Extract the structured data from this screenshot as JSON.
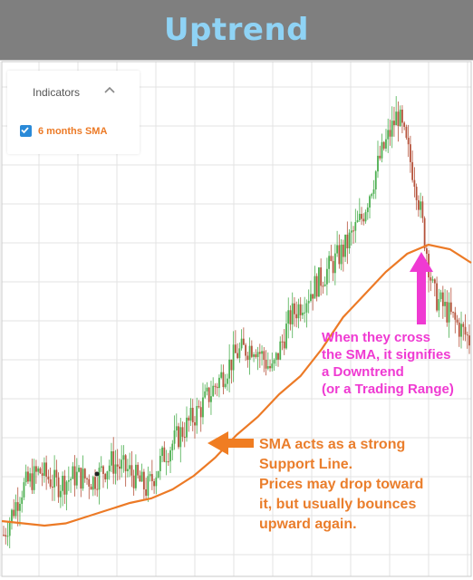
{
  "header": {
    "title": "Uptrend"
  },
  "indicators_panel": {
    "title": "Indicators",
    "collapse_icon": "chevron-up-icon",
    "items": [
      {
        "label": "6 months SMA",
        "checked": true,
        "color": "#ec7a26"
      }
    ]
  },
  "annotations": {
    "downtrend": "When they cross\nthe SMA, it signifies\na Downtrend\n(or a Trading Range)",
    "support": "SMA acts as a strong\nSupport Line.\nPrices may drop toward\nit, but usually bounces\nupward again."
  },
  "colors": {
    "title_bar": "#7f7f7f",
    "title_text": "#8fd3f5",
    "sma_line": "#ec7a26",
    "up_candle": "#4caf50",
    "down_candle": "#b5523b",
    "pink_arrow": "#ef3ad2",
    "orange_arrow": "#f07d22"
  },
  "chart_data": {
    "type": "line",
    "series": [
      {
        "name": "6 months SMA",
        "values": [
          0.05,
          0.045,
          0.04,
          0.045,
          0.06,
          0.075,
          0.09,
          0.1,
          0.12,
          0.15,
          0.19,
          0.24,
          0.28,
          0.33,
          0.37,
          0.43,
          0.5,
          0.55,
          0.6,
          0.64,
          0.66,
          0.65,
          0.62
        ]
      },
      {
        "values": [
          0.02,
          0.12,
          0.16,
          0.13,
          0.15,
          0.14,
          0.18,
          0.16,
          0.12,
          0.2,
          0.25,
          0.3,
          0.36,
          0.42,
          0.44,
          0.38,
          0.5,
          0.55,
          0.6,
          0.65,
          0.72,
          0.85,
          0.95,
          0.8,
          0.55,
          0.5,
          0.45
        ]
      }
    ],
    "grid": true,
    "legend": "top-left"
  }
}
